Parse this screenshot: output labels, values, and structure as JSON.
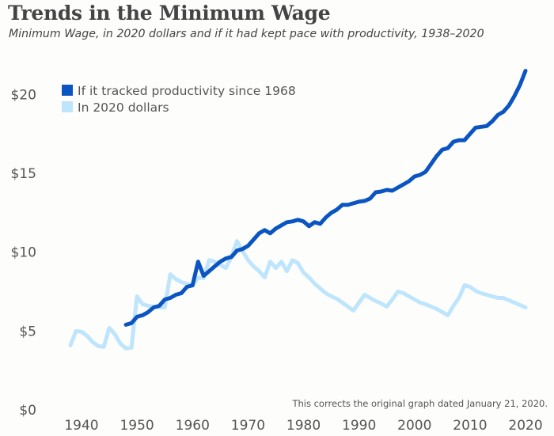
{
  "chart_data": {
    "type": "line",
    "title": "Trends in the Minimum Wage",
    "subtitle": "Minimum Wage, in 2020 dollars and if it had kept pace with productivity, 1938–2020",
    "xlabel": "",
    "ylabel": "",
    "xlim": [
      1938,
      2020
    ],
    "ylim": [
      0,
      21.5
    ],
    "x_ticks": [
      1940,
      1950,
      1960,
      1970,
      1980,
      1990,
      2000,
      2010,
      2020
    ],
    "y_ticks": [
      0,
      5,
      10,
      15,
      20
    ],
    "y_tick_labels": [
      "$0",
      "$5",
      "$10",
      "$15",
      "$20"
    ],
    "grid": false,
    "legend_position": "top-left",
    "annotation": "This corrects the original graph dated January 21, 2020.",
    "series": [
      {
        "name": "If it tracked productivity since 1968",
        "color": "#0b55c2",
        "points": [
          [
            1948,
            5.4
          ],
          [
            1949,
            5.5
          ],
          [
            1950,
            5.9
          ],
          [
            1951,
            6.0
          ],
          [
            1952,
            6.2
          ],
          [
            1953,
            6.5
          ],
          [
            1954,
            6.6
          ],
          [
            1955,
            7.0
          ],
          [
            1956,
            7.1
          ],
          [
            1957,
            7.3
          ],
          [
            1958,
            7.4
          ],
          [
            1959,
            7.8
          ],
          [
            1960,
            7.9
          ],
          [
            1961,
            9.4
          ],
          [
            1962,
            8.5
          ],
          [
            1963,
            8.8
          ],
          [
            1964,
            9.1
          ],
          [
            1965,
            9.4
          ],
          [
            1966,
            9.6
          ],
          [
            1967,
            9.7
          ],
          [
            1968,
            10.1
          ],
          [
            1969,
            10.2
          ],
          [
            1970,
            10.4
          ],
          [
            1971,
            10.8
          ],
          [
            1972,
            11.2
          ],
          [
            1973,
            11.4
          ],
          [
            1974,
            11.2
          ],
          [
            1975,
            11.5
          ],
          [
            1976,
            11.7
          ],
          [
            1977,
            11.9
          ],
          [
            1978,
            11.95
          ],
          [
            1979,
            12.05
          ],
          [
            1980,
            11.95
          ],
          [
            1981,
            11.65
          ],
          [
            1982,
            11.9
          ],
          [
            1983,
            11.8
          ],
          [
            1984,
            12.2
          ],
          [
            1985,
            12.5
          ],
          [
            1986,
            12.7
          ],
          [
            1987,
            13.0
          ],
          [
            1988,
            13.0
          ],
          [
            1989,
            13.1
          ],
          [
            1990,
            13.2
          ],
          [
            1991,
            13.25
          ],
          [
            1992,
            13.4
          ],
          [
            1993,
            13.8
          ],
          [
            1994,
            13.85
          ],
          [
            1995,
            13.95
          ],
          [
            1996,
            13.9
          ],
          [
            1997,
            14.1
          ],
          [
            1998,
            14.3
          ],
          [
            1999,
            14.5
          ],
          [
            2000,
            14.8
          ],
          [
            2001,
            14.9
          ],
          [
            2002,
            15.1
          ],
          [
            2003,
            15.6
          ],
          [
            2004,
            16.1
          ],
          [
            2005,
            16.5
          ],
          [
            2006,
            16.6
          ],
          [
            2007,
            17.0
          ],
          [
            2008,
            17.1
          ],
          [
            2009,
            17.1
          ],
          [
            2010,
            17.5
          ],
          [
            2011,
            17.9
          ],
          [
            2012,
            17.95
          ],
          [
            2013,
            18.0
          ],
          [
            2014,
            18.3
          ],
          [
            2015,
            18.7
          ],
          [
            2016,
            18.9
          ],
          [
            2017,
            19.3
          ],
          [
            2018,
            19.9
          ],
          [
            2019,
            20.6
          ],
          [
            2020,
            21.5
          ]
        ]
      },
      {
        "name": "In 2020 dollars",
        "color": "#bfe5fd",
        "points": [
          [
            1938,
            4.1
          ],
          [
            1939,
            5.0
          ],
          [
            1940,
            4.95
          ],
          [
            1941,
            4.7
          ],
          [
            1942,
            4.3
          ],
          [
            1943,
            4.05
          ],
          [
            1944,
            4.0
          ],
          [
            1945,
            5.2
          ],
          [
            1946,
            4.8
          ],
          [
            1947,
            4.2
          ],
          [
            1948,
            3.9
          ],
          [
            1949,
            3.95
          ],
          [
            1950,
            7.2
          ],
          [
            1951,
            6.7
          ],
          [
            1952,
            6.6
          ],
          [
            1953,
            6.55
          ],
          [
            1954,
            6.5
          ],
          [
            1955,
            6.5
          ],
          [
            1956,
            8.6
          ],
          [
            1957,
            8.3
          ],
          [
            1958,
            8.1
          ],
          [
            1959,
            8.0
          ],
          [
            1960,
            7.9
          ],
          [
            1961,
            8.4
          ],
          [
            1962,
            8.35
          ],
          [
            1963,
            9.5
          ],
          [
            1964,
            9.4
          ],
          [
            1965,
            9.2
          ],
          [
            1966,
            9.0
          ],
          [
            1967,
            9.7
          ],
          [
            1968,
            10.7
          ],
          [
            1969,
            10.1
          ],
          [
            1970,
            9.5
          ],
          [
            1971,
            9.1
          ],
          [
            1972,
            8.8
          ],
          [
            1973,
            8.4
          ],
          [
            1974,
            9.4
          ],
          [
            1975,
            9.0
          ],
          [
            1976,
            9.4
          ],
          [
            1977,
            8.8
          ],
          [
            1978,
            9.5
          ],
          [
            1979,
            9.3
          ],
          [
            1980,
            8.7
          ],
          [
            1981,
            8.4
          ],
          [
            1982,
            8.0
          ],
          [
            1983,
            7.7
          ],
          [
            1984,
            7.4
          ],
          [
            1985,
            7.2
          ],
          [
            1986,
            7.05
          ],
          [
            1987,
            6.8
          ],
          [
            1988,
            6.55
          ],
          [
            1989,
            6.3
          ],
          [
            1990,
            6.8
          ],
          [
            1991,
            7.3
          ],
          [
            1992,
            7.1
          ],
          [
            1993,
            6.9
          ],
          [
            1994,
            6.75
          ],
          [
            1995,
            6.55
          ],
          [
            1996,
            7.0
          ],
          [
            1997,
            7.5
          ],
          [
            1998,
            7.4
          ],
          [
            1999,
            7.2
          ],
          [
            2000,
            7.0
          ],
          [
            2001,
            6.8
          ],
          [
            2002,
            6.7
          ],
          [
            2003,
            6.55
          ],
          [
            2004,
            6.4
          ],
          [
            2005,
            6.2
          ],
          [
            2006,
            6.0
          ],
          [
            2007,
            6.6
          ],
          [
            2008,
            7.1
          ],
          [
            2009,
            7.9
          ],
          [
            2010,
            7.8
          ],
          [
            2011,
            7.55
          ],
          [
            2012,
            7.4
          ],
          [
            2013,
            7.3
          ],
          [
            2014,
            7.2
          ],
          [
            2015,
            7.1
          ],
          [
            2016,
            7.1
          ],
          [
            2017,
            6.95
          ],
          [
            2018,
            6.8
          ],
          [
            2019,
            6.65
          ],
          [
            2020,
            6.5
          ]
        ]
      }
    ]
  }
}
